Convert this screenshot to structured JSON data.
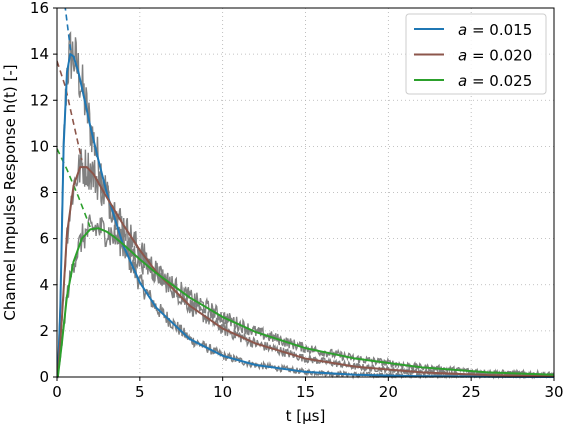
{
  "chart_data": {
    "type": "line",
    "xlabel": "t [μs]",
    "ylabel": "Channel Impulse Response h(t) [-]",
    "xlim": [
      0,
      30
    ],
    "ylim": [
      0,
      16
    ],
    "xticks": [
      0,
      5,
      10,
      15,
      20,
      25,
      30
    ],
    "yticks": [
      0,
      2,
      4,
      6,
      8,
      10,
      12,
      14,
      16
    ],
    "grid": true,
    "grid_style": "dotted",
    "legend_position": "top-right",
    "noise_color": "#808080",
    "series": [
      {
        "name": "a = 0.015",
        "legend_a": "a",
        "legend_value": "= 0.015",
        "color": "#1f77b4",
        "x": [
          0.05,
          0.2,
          0.4,
          0.6,
          0.8,
          1.0,
          1.3,
          1.7,
          2.0,
          2.5,
          3.0,
          4.0,
          5.0,
          6.0,
          8.0,
          10.0,
          12.0,
          15.0,
          18.0,
          22.0,
          26.0,
          30.0
        ],
        "y": [
          0.0,
          3.0,
          10.0,
          13.2,
          14.0,
          13.9,
          13.2,
          11.9,
          10.9,
          9.4,
          8.0,
          5.7,
          4.1,
          3.0,
          1.65,
          0.92,
          0.52,
          0.22,
          0.1,
          0.03,
          0.01,
          0.0
        ]
      },
      {
        "name": "a = 0.020",
        "legend_a": "a",
        "legend_value": "= 0.020",
        "color": "#8c564b",
        "x": [
          0.05,
          0.3,
          0.6,
          1.0,
          1.4,
          1.8,
          2.2,
          2.6,
          3.0,
          4.0,
          5.0,
          6.0,
          8.0,
          10.0,
          12.0,
          15.0,
          18.0,
          22.0,
          26.0,
          30.0
        ],
        "y": [
          0.0,
          2.6,
          6.2,
          8.3,
          9.1,
          9.1,
          8.8,
          8.3,
          7.8,
          6.6,
          5.5,
          4.55,
          3.1,
          2.1,
          1.45,
          0.8,
          0.45,
          0.2,
          0.08,
          0.03
        ]
      },
      {
        "name": "a = 0.025",
        "legend_a": "a",
        "legend_value": "= 0.025",
        "color": "#2ca02c",
        "x": [
          0.05,
          0.3,
          0.6,
          1.0,
          1.5,
          2.0,
          2.5,
          3.0,
          3.5,
          4.0,
          5.0,
          6.0,
          8.0,
          10.0,
          12.0,
          15.0,
          18.0,
          22.0,
          26.0,
          30.0
        ],
        "y": [
          0.0,
          1.5,
          3.5,
          5.0,
          6.0,
          6.4,
          6.45,
          6.3,
          6.05,
          5.75,
          5.1,
          4.5,
          3.45,
          2.6,
          1.95,
          1.25,
          0.8,
          0.42,
          0.2,
          0.1
        ]
      }
    ],
    "dashed_extensions": [
      {
        "color": "#1f77b4",
        "x": [
          0.25,
          0.5,
          0.85
        ],
        "y": [
          17.0,
          16.0,
          14.0
        ]
      },
      {
        "color": "#8c564b",
        "x": [
          0.0,
          0.5,
          1.0,
          1.5
        ],
        "y": [
          13.7,
          12.6,
          11.0,
          9.4
        ]
      },
      {
        "color": "#2ca02c",
        "x": [
          0.0,
          0.6,
          1.3,
          2.0
        ],
        "y": [
          9.9,
          9.0,
          7.8,
          6.5
        ]
      }
    ]
  }
}
